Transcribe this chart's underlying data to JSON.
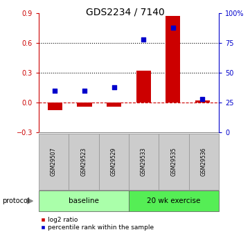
{
  "title": "GDS2234 / 7140",
  "samples": [
    "GSM29507",
    "GSM29523",
    "GSM29529",
    "GSM29533",
    "GSM29535",
    "GSM29536"
  ],
  "log2_ratio": [
    -0.075,
    -0.04,
    -0.04,
    0.32,
    0.87,
    0.02
  ],
  "percentile_rank": [
    35,
    35,
    38,
    78,
    88,
    28
  ],
  "bar_color": "#cc0000",
  "dot_color": "#0000cc",
  "ylim_left": [
    -0.3,
    0.9
  ],
  "ylim_right": [
    0,
    100
  ],
  "yticks_left": [
    -0.3,
    0.0,
    0.3,
    0.6,
    0.9
  ],
  "yticks_right": [
    0,
    25,
    50,
    75,
    100
  ],
  "ytick_labels_right": [
    "0",
    "25",
    "50",
    "75",
    "100%"
  ],
  "hlines_dotted": [
    0.3,
    0.6
  ],
  "hline_dashed": 0.0,
  "groups": [
    {
      "label": "baseline",
      "start": 0,
      "end": 3,
      "color": "#aaffaa"
    },
    {
      "label": "20 wk exercise",
      "start": 3,
      "end": 6,
      "color": "#55ee55"
    }
  ],
  "protocol_label": "protocol",
  "legend_items": [
    {
      "label": "log2 ratio",
      "color": "#cc0000"
    },
    {
      "label": "percentile rank within the sample",
      "color": "#0000cc"
    }
  ],
  "bar_width": 0.5,
  "left_tick_color": "#cc0000",
  "right_tick_color": "#0000cc",
  "group_box_color": "#cccccc",
  "title_fontsize": 10
}
